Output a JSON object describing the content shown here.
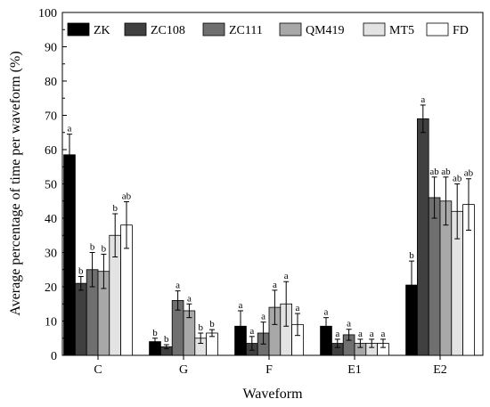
{
  "chart_data": {
    "type": "bar",
    "title": "",
    "xlabel": "Waveform",
    "ylabel": "Average percentage of time per waveform (%)",
    "ylim": [
      0,
      100
    ],
    "yticks": [
      0,
      10,
      20,
      30,
      40,
      50,
      60,
      70,
      80,
      90,
      100
    ],
    "categories": [
      "C",
      "G",
      "F",
      "E1",
      "E2"
    ],
    "legend_position": "top",
    "grid": false,
    "series": [
      {
        "name": "ZK",
        "color": "#000000",
        "values": [
          58.5,
          4.0,
          8.5,
          8.5,
          20.5
        ],
        "errors": [
          6.0,
          1.0,
          4.5,
          2.5,
          7.0
        ],
        "letters": [
          "a",
          "b",
          "a",
          "a",
          "b"
        ]
      },
      {
        "name": "ZC108",
        "color": "#404040",
        "values": [
          21.0,
          2.5,
          3.5,
          3.5,
          69.0
        ],
        "errors": [
          2.0,
          0.6,
          2.0,
          1.2,
          4.0
        ],
        "letters": [
          "b",
          "b",
          "a",
          "a",
          "a"
        ]
      },
      {
        "name": "ZC111",
        "color": "#6f6f6f",
        "values": [
          25.0,
          16.0,
          6.5,
          6.0,
          46.0
        ],
        "errors": [
          5.0,
          2.8,
          3.2,
          1.6,
          6.0
        ],
        "letters": [
          "b",
          "a",
          "a",
          "a",
          "ab"
        ]
      },
      {
        "name": "QM419",
        "color": "#a8a8a8",
        "values": [
          24.5,
          13.0,
          14.0,
          3.5,
          45.0
        ],
        "errors": [
          5.0,
          2.0,
          5.0,
          1.2,
          7.0
        ],
        "letters": [
          "b",
          "a",
          "a",
          "a",
          "ab"
        ]
      },
      {
        "name": "MT5",
        "color": "#e3e3e3",
        "values": [
          35.0,
          5.0,
          15.0,
          3.5,
          42.0
        ],
        "errors": [
          6.3,
          1.5,
          6.5,
          1.2,
          8.0
        ],
        "letters": [
          "b",
          "b",
          "a",
          "a",
          "ab"
        ]
      },
      {
        "name": "FD",
        "color": "#ffffff",
        "values": [
          38.0,
          6.5,
          9.0,
          3.5,
          44.0
        ],
        "errors": [
          6.8,
          1.0,
          3.2,
          1.2,
          7.5
        ],
        "letters": [
          "ab",
          "b",
          "a",
          "a",
          "ab"
        ]
      }
    ]
  }
}
